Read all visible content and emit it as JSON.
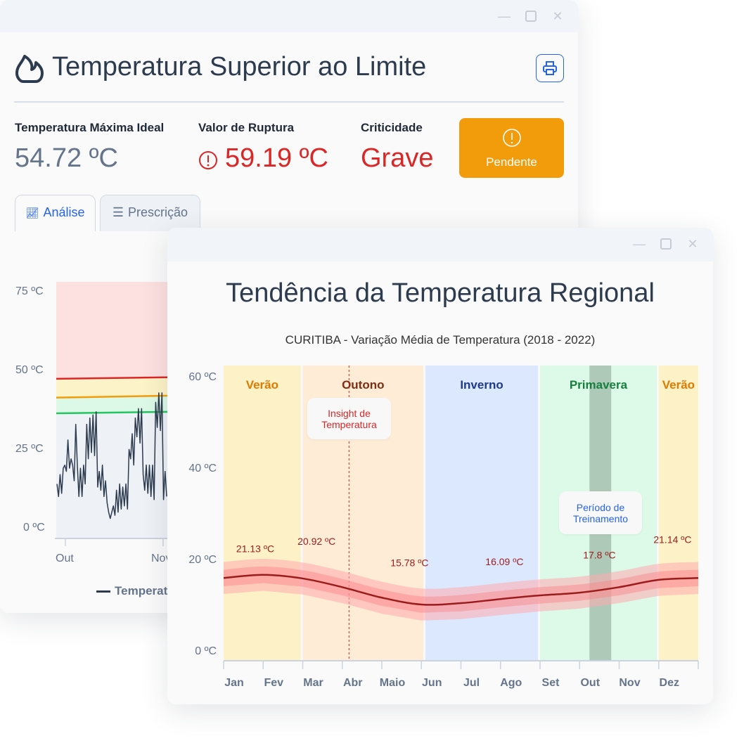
{
  "alert_window": {
    "title": "Temperatura Superior ao Limite",
    "stats": [
      {
        "label": "Temperatura Máxima Ideal",
        "value": "54.72 ºC"
      },
      {
        "label": "Valor de Ruptura",
        "value": "59.19 ºC"
      },
      {
        "label": "Criticidade",
        "value": "Grave"
      }
    ],
    "status_button": "Pendente",
    "tabs": [
      {
        "label": "Análise",
        "active": true
      },
      {
        "label": "Prescrição",
        "active": false
      }
    ],
    "colors": {
      "accent": "#2563eb",
      "danger": "#dc2626",
      "warning": "#f39c0b"
    },
    "chart_data": {
      "type": "line",
      "y_ticks": [
        "75 ºC",
        "50 ºC",
        "25 ºC",
        "0 ºC"
      ],
      "ylim": [
        0,
        75
      ],
      "x_ticks": [
        "Out",
        "Nov"
      ],
      "thresholds": [
        {
          "color": "#dc2626",
          "start": 47.5,
          "end": 48.5
        },
        {
          "color": "#f39c0b",
          "start": 41.5,
          "end": 42.8
        },
        {
          "color": "#22c55e",
          "start": 36.5,
          "end": 37.5
        }
      ],
      "series": [
        {
          "name": "Temperatura",
          "color": "#2d3b4e",
          "values": [
            14,
            10,
            17,
            11,
            19,
            20,
            18,
            28,
            19,
            22,
            20,
            15,
            33,
            20,
            10,
            19,
            10,
            20,
            14,
            33,
            22,
            35,
            24,
            36,
            23,
            37,
            13,
            18,
            12,
            20,
            10,
            15,
            8,
            5,
            3,
            5,
            7,
            4,
            12,
            5,
            14,
            6,
            13,
            7,
            14,
            6,
            25,
            22,
            30,
            20,
            35,
            29,
            38,
            27,
            38,
            17,
            12,
            20,
            11,
            20,
            10,
            20,
            9,
            40,
            32,
            43,
            31,
            43,
            9,
            18,
            10
          ]
        }
      ]
    }
  },
  "trend_window": {
    "title": "Tendência da Temperatura Regional",
    "chart_data": {
      "type": "line",
      "subtitle": "CURITIBA - Variação Média de Temperatura (2018 - 2022)",
      "y_ticks": [
        "60 ºC",
        "40 ºC",
        "20 ºC",
        "0 ºC"
      ],
      "ylim": [
        0,
        60
      ],
      "categories": [
        "Jan",
        "Fev",
        "Mar",
        "Abr",
        "Maio",
        "Jun",
        "Jul",
        "Ago",
        "Set",
        "Out",
        "Nov",
        "Dez"
      ],
      "seasons": [
        {
          "label": "Verão",
          "start": 0,
          "end": 1.95,
          "fill": "#fdf1c7",
          "text": "#e07b00"
        },
        {
          "label": "Outono",
          "start": 2.0,
          "end": 5.05,
          "fill": "#feecd6",
          "text": "#7c2d12"
        },
        {
          "label": "Inverno",
          "start": 5.1,
          "end": 7.95,
          "fill": "#dbe8fd",
          "text": "#1e3a8a"
        },
        {
          "label": "Primavera",
          "start": 8.0,
          "end": 10.95,
          "fill": "#ddf9e7",
          "text": "#15803d"
        },
        {
          "label": "Verão",
          "start": 11.0,
          "end": 12,
          "fill": "#fdf1c7",
          "text": "#e07b00"
        }
      ],
      "training_period": {
        "label": "Período de Treinamento",
        "start": 9.25,
        "end": 9.8
      },
      "insight": {
        "label": "Insight de Temperatura",
        "x": 3.17
      },
      "series": [
        {
          "x": [
            0,
            1,
            2,
            3,
            4,
            5,
            6,
            7,
            8,
            9,
            10,
            11,
            12
          ],
          "values": [
            15.8,
            16.5,
            15.7,
            13.8,
            11.5,
            10.0,
            10.3,
            11.2,
            12.0,
            12.6,
            13.8,
            15.4,
            15.8
          ],
          "inner_band": 1.8,
          "outer_band": 3.5
        }
      ],
      "annotations": [
        {
          "text": "21.13 ºC",
          "x": 0.8,
          "y": 21.5
        },
        {
          "text": "20.92 ºC",
          "x": 2.35,
          "y": 23.1
        },
        {
          "text": "15.78 ºC",
          "x": 4.7,
          "y": 18.4
        },
        {
          "text": "16.09 ºC",
          "x": 7.1,
          "y": 18.6
        },
        {
          "text": "17.8 ºC",
          "x": 9.5,
          "y": 20.1
        },
        {
          "text": "21.14 ºC",
          "x": 11.35,
          "y": 23.5
        }
      ]
    }
  }
}
